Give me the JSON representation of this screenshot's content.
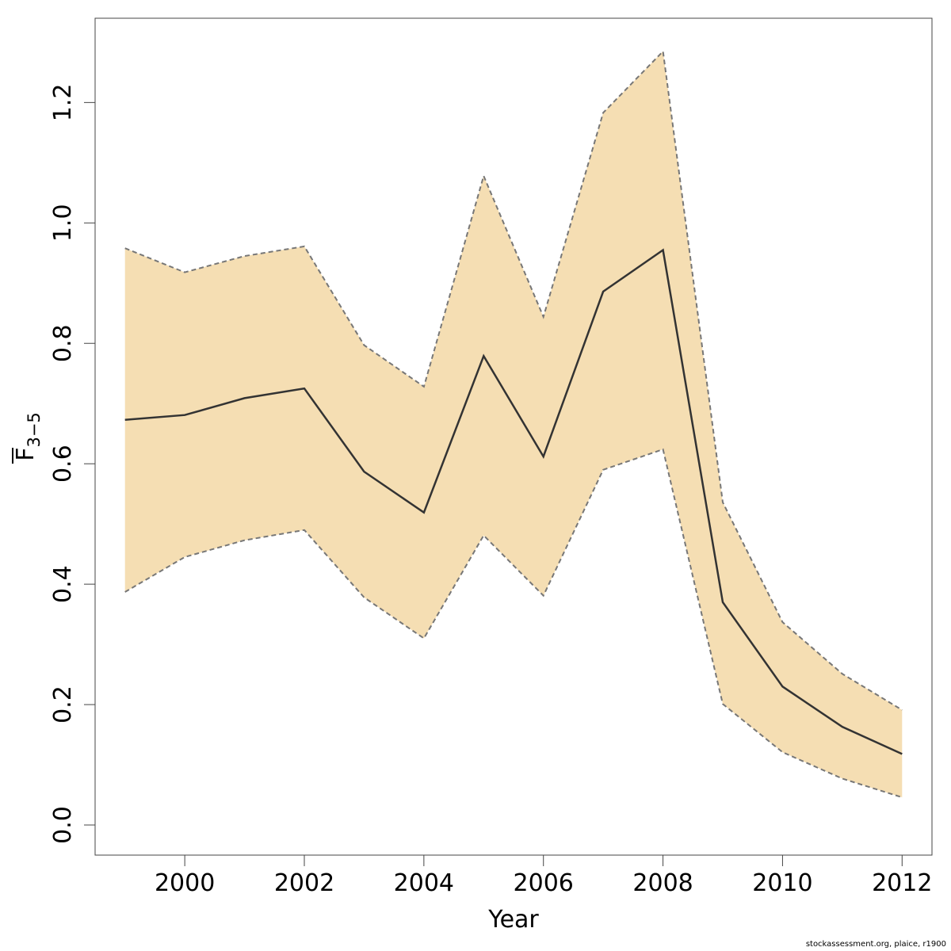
{
  "chart_data": {
    "type": "line",
    "xlabel": "Year",
    "ylabel": "F",
    "ylabel_subscript": "3−5",
    "xlim": [
      1998.5,
      2012.5
    ],
    "ylim": [
      -0.05,
      1.34
    ],
    "x_ticks": [
      "2000",
      "2002",
      "2004",
      "2006",
      "2008",
      "2010",
      "2012"
    ],
    "y_ticks": [
      "0.0",
      "0.2",
      "0.4",
      "0.6",
      "0.8",
      "1.0",
      "1.2"
    ],
    "x": [
      1999,
      2000,
      2001,
      2002,
      2003,
      2004,
      2005,
      2006,
      2007,
      2008,
      2009,
      2010,
      2011,
      2012
    ],
    "series": [
      {
        "role": "estimate",
        "values": [
          0.673,
          0.681,
          0.709,
          0.725,
          0.587,
          0.519,
          0.779,
          0.612,
          0.886,
          0.955,
          0.37,
          0.23,
          0.163,
          0.118
        ]
      },
      {
        "role": "upper",
        "values": [
          0.958,
          0.918,
          0.945,
          0.961,
          0.797,
          0.728,
          1.078,
          0.844,
          1.183,
          1.285,
          0.536,
          0.337,
          0.251,
          0.191
        ]
      },
      {
        "role": "lower",
        "values": [
          0.387,
          0.445,
          0.473,
          0.49,
          0.378,
          0.31,
          0.481,
          0.381,
          0.59,
          0.624,
          0.201,
          0.121,
          0.077,
          0.046
        ]
      }
    ],
    "band_color": "#f5deb3",
    "line_color": "#333333",
    "bound_color": "#777777",
    "grid": false,
    "legend": "none"
  },
  "footnote": "stockassessment.org, plaice, r1900"
}
